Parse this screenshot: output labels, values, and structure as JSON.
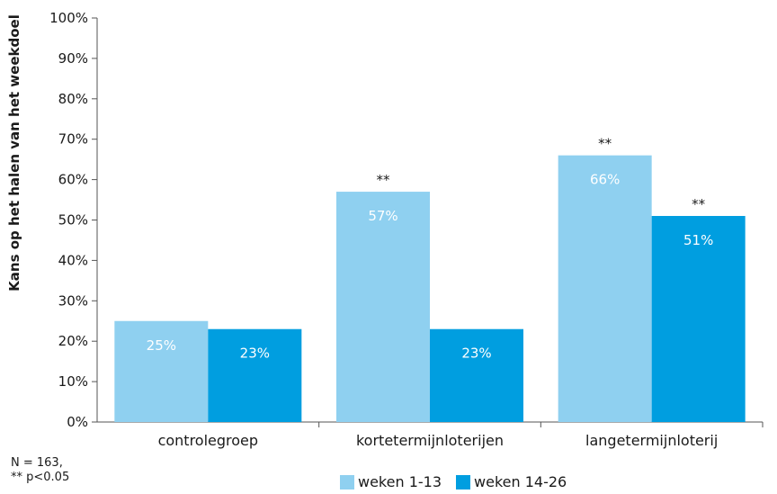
{
  "chart_data": {
    "type": "bar",
    "ylabel": "Kans op het halen van het weekdoel",
    "ylim": [
      0,
      100
    ],
    "yticks": [
      "0%",
      "10%",
      "20%",
      "30%",
      "40%",
      "50%",
      "60%",
      "70%",
      "80%",
      "90%",
      "100%"
    ],
    "categories": [
      "controlegroep",
      "kortetermijnloterijen",
      "langetermijnloterij"
    ],
    "series": [
      {
        "name": "weken 1-13",
        "color": "#8fd0f0",
        "values": [
          25,
          57,
          66
        ],
        "labels": [
          "25%",
          "57%",
          "66%"
        ],
        "annotations": [
          "",
          "**",
          "**"
        ]
      },
      {
        "name": "weken 14-26",
        "color": "#009ee0",
        "values": [
          23,
          23,
          51
        ],
        "labels": [
          "23%",
          "23%",
          "51%"
        ],
        "annotations": [
          "",
          "",
          "**"
        ]
      }
    ],
    "grid": false,
    "legend_position": "bottom"
  },
  "notes": {
    "line1": "N = 163,",
    "line2": "** p<0.05"
  }
}
